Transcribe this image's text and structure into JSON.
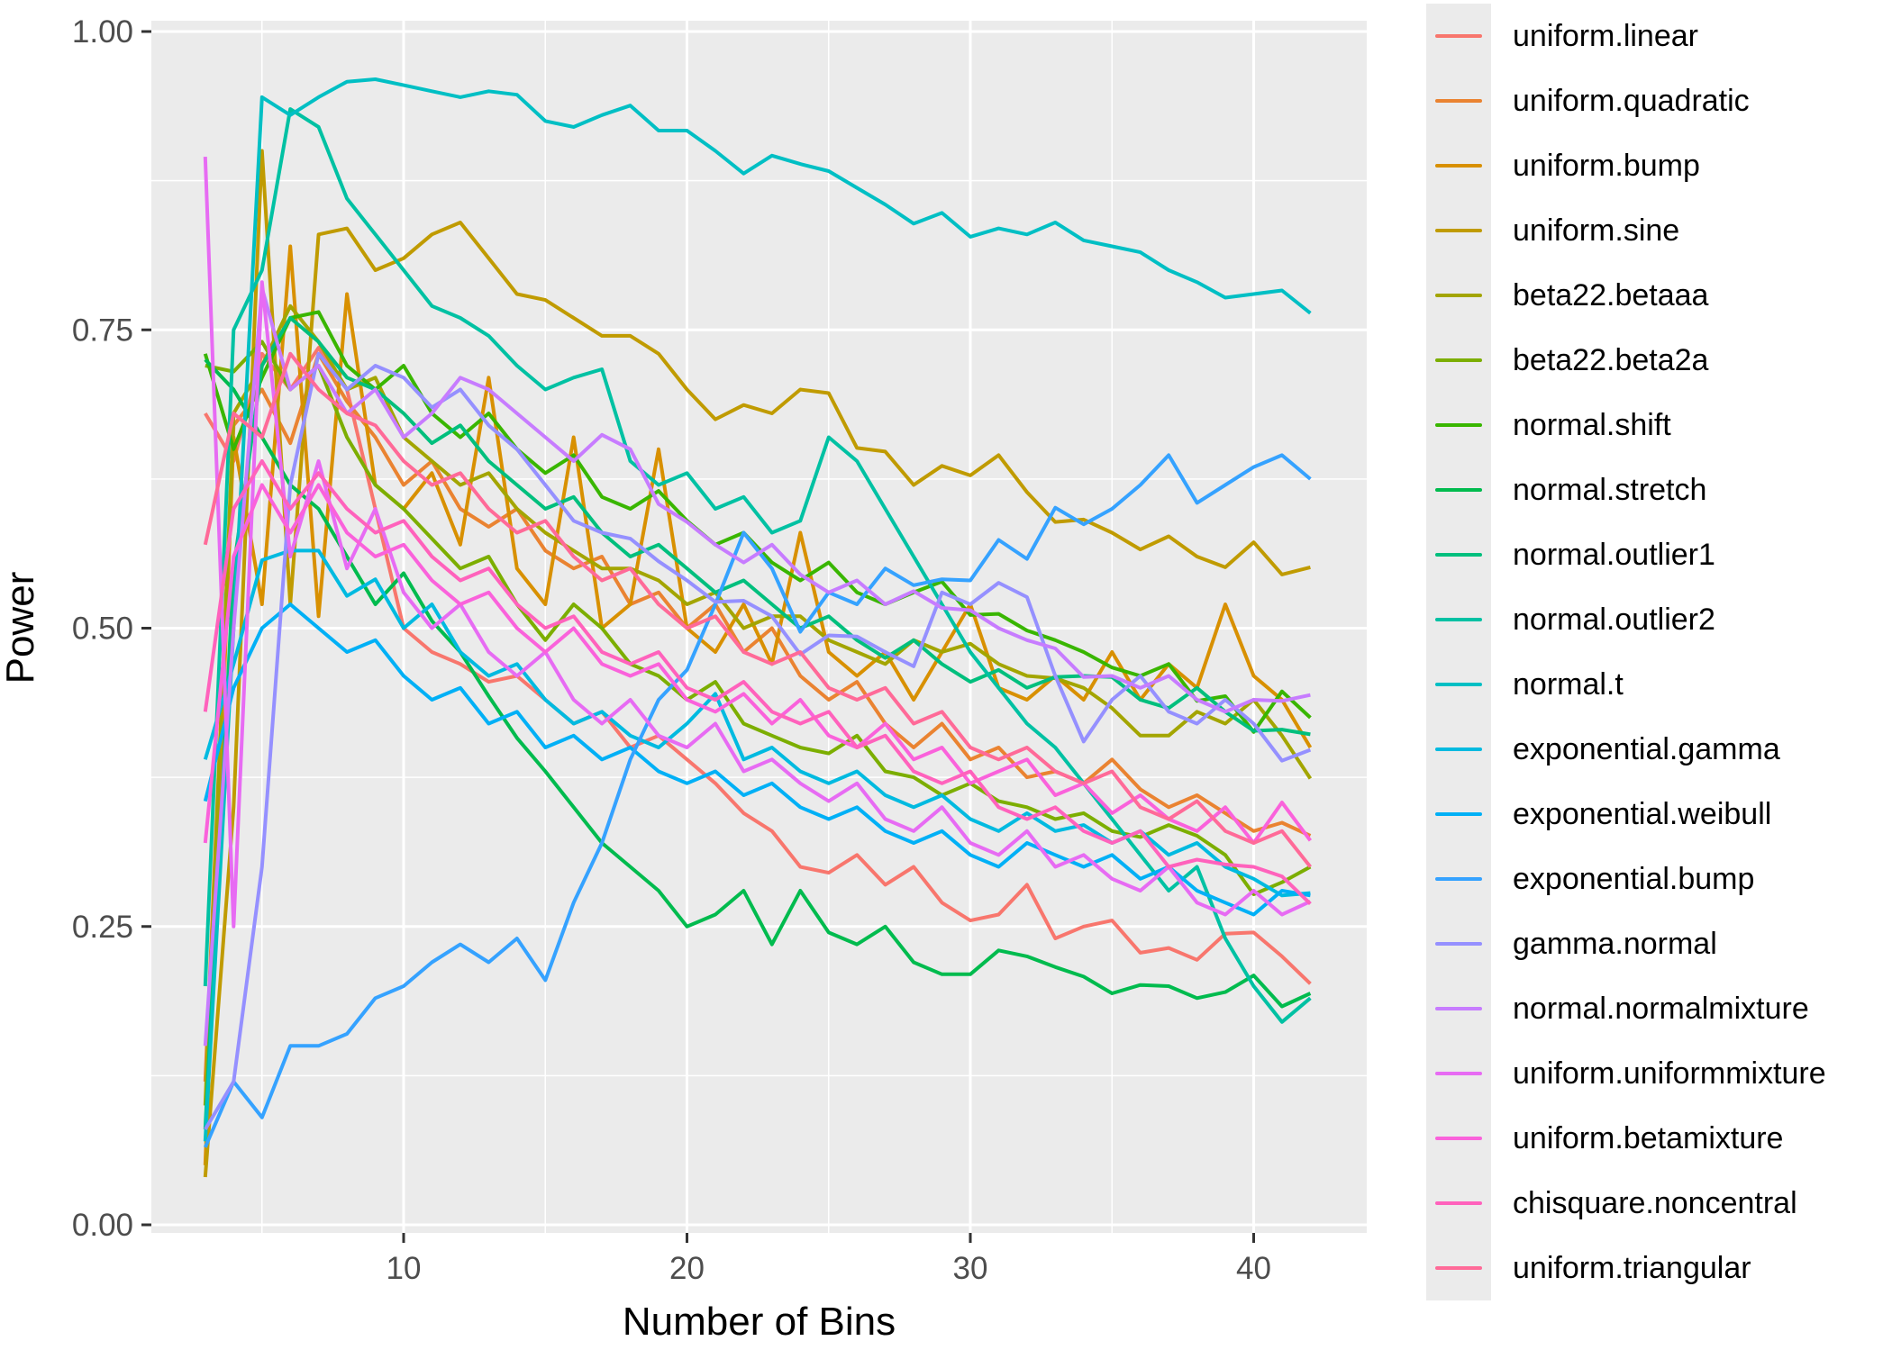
{
  "chart_data": {
    "type": "line",
    "title": "",
    "xlabel": "Number of Bins",
    "ylabel": "Power",
    "xlim": [
      3,
      42
    ],
    "ylim": [
      0.0,
      1.0
    ],
    "x_major_ticks": [
      10,
      20,
      30,
      40
    ],
    "x_minor_ticks": [
      5,
      15,
      25,
      35
    ],
    "y_major_ticks": [
      0.0,
      0.25,
      0.5,
      0.75,
      1.0
    ],
    "y_tick_labels": [
      "0.00",
      "0.25",
      "0.50",
      "0.75",
      "1.00"
    ],
    "y_minor_ticks": [
      0.125,
      0.375,
      0.625,
      0.875
    ],
    "grid": "major+minor",
    "legend_position": "right",
    "panel_bg": "#ebebeb",
    "grid_color": "#ffffff",
    "tick_label_color": "#4d4d4d",
    "tick_mark_color": "#333333",
    "x": [
      3,
      4,
      5,
      6,
      7,
      8,
      9,
      10,
      11,
      12,
      13,
      14,
      15,
      16,
      17,
      18,
      19,
      20,
      21,
      22,
      23,
      24,
      25,
      26,
      27,
      28,
      29,
      30,
      31,
      32,
      33,
      34,
      35,
      36,
      37,
      38,
      39,
      40,
      41,
      42
    ],
    "series": [
      {
        "name": "uniform.linear",
        "color": "#F8766D",
        "values": [
          0.68,
          0.64,
          0.73,
          0.7,
          0.735,
          0.7,
          0.6,
          0.5,
          0.48,
          0.47,
          0.455,
          0.46,
          0.44,
          0.42,
          0.43,
          0.4,
          0.41,
          0.39,
          0.37,
          0.345,
          0.33,
          0.3,
          0.295,
          0.31,
          0.285,
          0.3,
          0.27,
          0.255,
          0.26,
          0.285,
          0.24,
          0.25,
          0.255,
          0.228,
          0.232,
          0.222,
          0.244,
          0.245,
          0.225,
          0.202
        ]
      },
      {
        "name": "uniform.quadratic",
        "color": "#EA8331",
        "values": [
          0.12,
          0.67,
          0.7,
          0.655,
          0.73,
          0.69,
          0.66,
          0.62,
          0.64,
          0.6,
          0.585,
          0.6,
          0.565,
          0.55,
          0.56,
          0.52,
          0.53,
          0.5,
          0.52,
          0.48,
          0.5,
          0.46,
          0.44,
          0.455,
          0.42,
          0.4,
          0.42,
          0.39,
          0.4,
          0.375,
          0.38,
          0.37,
          0.39,
          0.365,
          0.35,
          0.36,
          0.345,
          0.33,
          0.337,
          0.326
        ]
      },
      {
        "name": "uniform.bump",
        "color": "#D89000",
        "values": [
          0.05,
          0.66,
          0.52,
          0.82,
          0.51,
          0.78,
          0.62,
          0.6,
          0.63,
          0.57,
          0.71,
          0.55,
          0.52,
          0.66,
          0.5,
          0.52,
          0.65,
          0.5,
          0.48,
          0.52,
          0.47,
          0.58,
          0.48,
          0.46,
          0.48,
          0.44,
          0.48,
          0.52,
          0.45,
          0.44,
          0.46,
          0.44,
          0.48,
          0.44,
          0.47,
          0.45,
          0.52,
          0.46,
          0.44,
          0.4
        ]
      },
      {
        "name": "uniform.sine",
        "color": "#C09B00",
        "values": [
          0.04,
          0.35,
          0.9,
          0.52,
          0.83,
          0.835,
          0.8,
          0.81,
          0.83,
          0.84,
          0.81,
          0.78,
          0.775,
          0.76,
          0.745,
          0.745,
          0.73,
          0.7,
          0.675,
          0.687,
          0.68,
          0.7,
          0.697,
          0.651,
          0.648,
          0.62,
          0.636,
          0.628,
          0.645,
          0.614,
          0.589,
          0.591,
          0.58,
          0.566,
          0.577,
          0.56,
          0.551,
          0.572,
          0.545,
          0.551
        ]
      },
      {
        "name": "beta22.betaaa",
        "color": "#A3A500",
        "values": [
          0.1,
          0.68,
          0.72,
          0.77,
          0.74,
          0.7,
          0.71,
          0.66,
          0.64,
          0.62,
          0.63,
          0.6,
          0.58,
          0.565,
          0.55,
          0.55,
          0.54,
          0.52,
          0.53,
          0.5,
          0.51,
          0.51,
          0.49,
          0.48,
          0.47,
          0.49,
          0.48,
          0.487,
          0.47,
          0.46,
          0.458,
          0.45,
          0.433,
          0.41,
          0.41,
          0.43,
          0.42,
          0.44,
          0.41,
          0.374
        ]
      },
      {
        "name": "beta22.beta2a",
        "color": "#7CAE00",
        "values": [
          0.72,
          0.715,
          0.74,
          0.7,
          0.72,
          0.66,
          0.62,
          0.6,
          0.575,
          0.55,
          0.56,
          0.52,
          0.49,
          0.52,
          0.5,
          0.47,
          0.46,
          0.44,
          0.455,
          0.42,
          0.41,
          0.4,
          0.395,
          0.41,
          0.38,
          0.375,
          0.36,
          0.37,
          0.355,
          0.35,
          0.34,
          0.345,
          0.33,
          0.325,
          0.335,
          0.326,
          0.31,
          0.277,
          0.287,
          0.3
        ]
      },
      {
        "name": "normal.shift",
        "color": "#39B600",
        "values": [
          0.73,
          0.65,
          0.71,
          0.76,
          0.765,
          0.72,
          0.7,
          0.72,
          0.68,
          0.66,
          0.68,
          0.65,
          0.63,
          0.645,
          0.61,
          0.6,
          0.615,
          0.59,
          0.57,
          0.58,
          0.555,
          0.54,
          0.555,
          0.53,
          0.52,
          0.53,
          0.539,
          0.511,
          0.512,
          0.498,
          0.49,
          0.48,
          0.467,
          0.46,
          0.47,
          0.439,
          0.443,
          0.413,
          0.447,
          0.425
        ]
      },
      {
        "name": "normal.stretch",
        "color": "#00BB4E",
        "values": [
          0.725,
          0.7,
          0.66,
          0.62,
          0.6,
          0.56,
          0.52,
          0.546,
          0.506,
          0.48,
          0.443,
          0.408,
          0.38,
          0.35,
          0.32,
          0.3,
          0.28,
          0.25,
          0.26,
          0.28,
          0.235,
          0.28,
          0.245,
          0.235,
          0.25,
          0.22,
          0.21,
          0.21,
          0.23,
          0.225,
          0.216,
          0.208,
          0.194,
          0.201,
          0.2,
          0.19,
          0.195,
          0.209,
          0.183,
          0.194
        ]
      },
      {
        "name": "normal.outlier1",
        "color": "#00BF7D",
        "values": [
          0.08,
          0.55,
          0.72,
          0.76,
          0.74,
          0.71,
          0.7,
          0.68,
          0.655,
          0.67,
          0.64,
          0.62,
          0.6,
          0.61,
          0.58,
          0.56,
          0.57,
          0.55,
          0.53,
          0.54,
          0.52,
          0.5,
          0.51,
          0.49,
          0.475,
          0.49,
          0.47,
          0.455,
          0.465,
          0.45,
          0.459,
          0.46,
          0.459,
          0.44,
          0.433,
          0.45,
          0.43,
          0.414,
          0.415,
          0.411
        ]
      },
      {
        "name": "normal.outlier2",
        "color": "#00C1A3",
        "values": [
          0.2,
          0.75,
          0.8,
          0.935,
          0.92,
          0.86,
          0.83,
          0.8,
          0.77,
          0.76,
          0.745,
          0.72,
          0.7,
          0.71,
          0.717,
          0.64,
          0.62,
          0.63,
          0.6,
          0.61,
          0.58,
          0.59,
          0.66,
          0.64,
          0.6,
          0.56,
          0.52,
          0.48,
          0.45,
          0.42,
          0.4,
          0.37,
          0.34,
          0.31,
          0.28,
          0.3,
          0.24,
          0.2,
          0.17,
          0.19
        ]
      },
      {
        "name": "normal.t",
        "color": "#00BFC4",
        "values": [
          0.07,
          0.5,
          0.945,
          0.93,
          0.945,
          0.958,
          0.96,
          0.955,
          0.95,
          0.945,
          0.95,
          0.947,
          0.925,
          0.92,
          0.93,
          0.938,
          0.917,
          0.917,
          0.9,
          0.881,
          0.896,
          0.889,
          0.883,
          0.869,
          0.855,
          0.839,
          0.848,
          0.828,
          0.835,
          0.83,
          0.84,
          0.825,
          0.82,
          0.815,
          0.8,
          0.79,
          0.777,
          0.78,
          0.783,
          0.764
        ]
      },
      {
        "name": "exponential.gamma",
        "color": "#00BAE0",
        "values": [
          0.39,
          0.47,
          0.557,
          0.565,
          0.565,
          0.527,
          0.541,
          0.5,
          0.52,
          0.48,
          0.46,
          0.47,
          0.44,
          0.42,
          0.43,
          0.41,
          0.4,
          0.42,
          0.445,
          0.39,
          0.4,
          0.38,
          0.37,
          0.38,
          0.36,
          0.35,
          0.36,
          0.34,
          0.33,
          0.345,
          0.33,
          0.335,
          0.32,
          0.33,
          0.31,
          0.32,
          0.3,
          0.29,
          0.276,
          0.278
        ]
      },
      {
        "name": "exponential.weibull",
        "color": "#00B0F6",
        "values": [
          0.355,
          0.45,
          0.5,
          0.52,
          0.5,
          0.48,
          0.49,
          0.46,
          0.44,
          0.45,
          0.42,
          0.43,
          0.4,
          0.41,
          0.39,
          0.4,
          0.38,
          0.37,
          0.38,
          0.36,
          0.37,
          0.35,
          0.34,
          0.35,
          0.33,
          0.32,
          0.33,
          0.31,
          0.3,
          0.32,
          0.31,
          0.3,
          0.31,
          0.29,
          0.3,
          0.28,
          0.27,
          0.26,
          0.28,
          0.276
        ]
      },
      {
        "name": "exponential.bump",
        "color": "#35A2FF",
        "values": [
          0.065,
          0.12,
          0.09,
          0.15,
          0.15,
          0.16,
          0.19,
          0.2,
          0.22,
          0.235,
          0.22,
          0.24,
          0.205,
          0.27,
          0.32,
          0.39,
          0.44,
          0.465,
          0.52,
          0.58,
          0.55,
          0.497,
          0.53,
          0.52,
          0.55,
          0.536,
          0.541,
          0.54,
          0.574,
          0.558,
          0.601,
          0.587,
          0.6,
          0.62,
          0.645,
          0.605,
          0.62,
          0.635,
          0.645,
          0.625
        ]
      },
      {
        "name": "gamma.normal",
        "color": "#9590FF",
        "values": [
          0.08,
          0.12,
          0.3,
          0.62,
          0.73,
          0.7,
          0.72,
          0.71,
          0.685,
          0.7,
          0.67,
          0.65,
          0.62,
          0.59,
          0.58,
          0.575,
          0.556,
          0.54,
          0.522,
          0.523,
          0.51,
          0.478,
          0.494,
          0.493,
          0.48,
          0.468,
          0.53,
          0.52,
          0.538,
          0.526,
          0.46,
          0.405,
          0.44,
          0.46,
          0.43,
          0.42,
          0.44,
          0.42,
          0.389,
          0.398
        ]
      },
      {
        "name": "normal.normalmixture",
        "color": "#C77CFF",
        "values": [
          0.15,
          0.5,
          0.785,
          0.7,
          0.72,
          0.68,
          0.7,
          0.66,
          0.68,
          0.71,
          0.7,
          0.68,
          0.66,
          0.64,
          0.662,
          0.65,
          0.604,
          0.589,
          0.57,
          0.555,
          0.57,
          0.545,
          0.53,
          0.54,
          0.52,
          0.531,
          0.517,
          0.515,
          0.5,
          0.49,
          0.483,
          0.459,
          0.46,
          0.45,
          0.46,
          0.44,
          0.43,
          0.44,
          0.439,
          0.444
        ]
      },
      {
        "name": "uniform.uniformmixture",
        "color": "#E76BF3",
        "values": [
          0.895,
          0.25,
          0.79,
          0.56,
          0.64,
          0.55,
          0.6,
          0.53,
          0.5,
          0.52,
          0.48,
          0.46,
          0.48,
          0.44,
          0.42,
          0.44,
          0.41,
          0.4,
          0.42,
          0.38,
          0.39,
          0.37,
          0.355,
          0.37,
          0.34,
          0.33,
          0.35,
          0.32,
          0.31,
          0.33,
          0.3,
          0.31,
          0.29,
          0.28,
          0.3,
          0.27,
          0.26,
          0.28,
          0.26,
          0.271
        ]
      },
      {
        "name": "uniform.betamixture",
        "color": "#FA62DB",
        "values": [
          0.32,
          0.56,
          0.62,
          0.58,
          0.62,
          0.58,
          0.56,
          0.57,
          0.54,
          0.52,
          0.53,
          0.5,
          0.48,
          0.5,
          0.47,
          0.46,
          0.47,
          0.44,
          0.43,
          0.445,
          0.42,
          0.44,
          0.41,
          0.4,
          0.42,
          0.39,
          0.4,
          0.37,
          0.38,
          0.39,
          0.36,
          0.37,
          0.345,
          0.36,
          0.34,
          0.33,
          0.35,
          0.32,
          0.354,
          0.322
        ]
      },
      {
        "name": "chisquare.noncentral",
        "color": "#FF62BC",
        "values": [
          0.43,
          0.6,
          0.64,
          0.6,
          0.63,
          0.6,
          0.58,
          0.59,
          0.56,
          0.54,
          0.55,
          0.52,
          0.5,
          0.51,
          0.48,
          0.47,
          0.48,
          0.45,
          0.44,
          0.455,
          0.43,
          0.42,
          0.43,
          0.4,
          0.41,
          0.38,
          0.37,
          0.38,
          0.35,
          0.34,
          0.35,
          0.33,
          0.32,
          0.33,
          0.3,
          0.306,
          0.302,
          0.3,
          0.292,
          0.269
        ]
      },
      {
        "name": "uniform.triangular",
        "color": "#FF6A98",
        "values": [
          0.57,
          0.68,
          0.66,
          0.73,
          0.7,
          0.68,
          0.67,
          0.64,
          0.62,
          0.63,
          0.6,
          0.58,
          0.59,
          0.56,
          0.54,
          0.55,
          0.52,
          0.5,
          0.51,
          0.48,
          0.47,
          0.48,
          0.45,
          0.44,
          0.45,
          0.42,
          0.43,
          0.4,
          0.39,
          0.4,
          0.38,
          0.37,
          0.38,
          0.35,
          0.34,
          0.355,
          0.33,
          0.32,
          0.33,
          0.3
        ]
      }
    ]
  }
}
